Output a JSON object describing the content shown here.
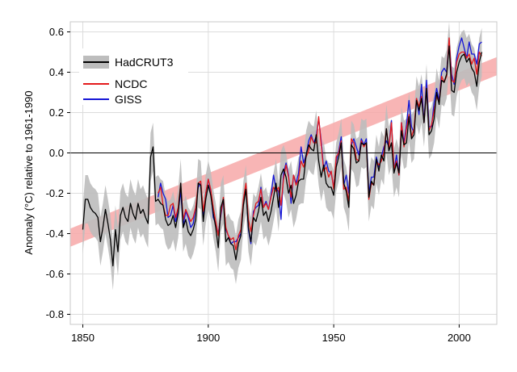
{
  "chart_data": {
    "type": "line",
    "title": "",
    "xlabel": "",
    "ylabel": "Anomaly (°C) relative to 1961-1990",
    "xlim": [
      1845,
      2015
    ],
    "ylim": [
      -0.85,
      0.65
    ],
    "x_ticks": [
      1850,
      1900,
      1950,
      2000
    ],
    "y_ticks": [
      0.6,
      0.4,
      0.2,
      0.0,
      -0.2,
      -0.4,
      -0.6,
      -0.8
    ],
    "y_tick_labels": [
      "0.6",
      "0.4",
      "0.2",
      "0.0",
      "-0.2",
      "-0.4",
      "-0.6",
      "-0.8"
    ],
    "grid": true,
    "legend_position": "top-left",
    "trend_band": {
      "x": [
        1845,
        2015
      ],
      "center": [
        -0.42,
        0.43
      ],
      "half_width": 0.045,
      "color": "#f7a8a8"
    },
    "series": [
      {
        "name": "HadCRUT3",
        "color": "#000000",
        "band_color": "#bdbdbd",
        "uncertainty": 0.12,
        "start": 1850,
        "values": [
          -0.38,
          -0.23,
          -0.23,
          -0.27,
          -0.29,
          -0.3,
          -0.32,
          -0.44,
          -0.37,
          -0.28,
          -0.35,
          -0.43,
          -0.56,
          -0.38,
          -0.49,
          -0.31,
          -0.27,
          -0.32,
          -0.34,
          -0.25,
          -0.3,
          -0.33,
          -0.25,
          -0.3,
          -0.28,
          -0.32,
          -0.35,
          -0.02,
          0.03,
          -0.24,
          -0.23,
          -0.25,
          -0.26,
          -0.33,
          -0.36,
          -0.35,
          -0.31,
          -0.37,
          -0.3,
          -0.15,
          -0.37,
          -0.33,
          -0.39,
          -0.41,
          -0.38,
          -0.33,
          -0.15,
          -0.16,
          -0.34,
          -0.23,
          -0.16,
          -0.21,
          -0.3,
          -0.37,
          -0.47,
          -0.27,
          -0.23,
          -0.44,
          -0.42,
          -0.45,
          -0.46,
          -0.53,
          -0.45,
          -0.41,
          -0.26,
          -0.18,
          -0.37,
          -0.44,
          -0.32,
          -0.34,
          -0.29,
          -0.22,
          -0.31,
          -0.29,
          -0.34,
          -0.29,
          -0.22,
          -0.15,
          -0.27,
          -0.11,
          -0.08,
          -0.12,
          -0.2,
          -0.16,
          -0.25,
          -0.21,
          -0.14,
          -0.13,
          -0.13,
          -0.01,
          0.04,
          0.02,
          0.01,
          0.09,
          -0.04,
          -0.12,
          -0.06,
          -0.15,
          -0.17,
          -0.17,
          -0.21,
          -0.07,
          -0.02,
          0.05,
          -0.15,
          -0.19,
          -0.27,
          0.04,
          0.02,
          -0.05,
          -0.04,
          0.05,
          0.04,
          0.05,
          -0.22,
          -0.14,
          -0.16,
          -0.03,
          -0.09,
          -0.01,
          -0.04,
          0.12,
          0.01,
          0.05,
          -0.1,
          -0.05,
          -0.1,
          0.11,
          0.04,
          0.05,
          0.18,
          0.07,
          0.09,
          0.26,
          0.21,
          0.27,
          0.15,
          0.32,
          0.09,
          0.11,
          0.17,
          0.3,
          0.24,
          0.36,
          0.35,
          0.39,
          0.53,
          0.31,
          0.3,
          0.4,
          0.45,
          0.48,
          0.49,
          0.45,
          0.47,
          0.42,
          0.4,
          0.33,
          0.45,
          0.5
        ]
      },
      {
        "name": "NCDC",
        "color": "#e41a1c",
        "start": 1880,
        "values": [
          -0.2,
          -0.17,
          -0.26,
          -0.31,
          -0.31,
          -0.26,
          -0.25,
          -0.32,
          -0.27,
          -0.15,
          -0.33,
          -0.28,
          -0.31,
          -0.34,
          -0.32,
          -0.27,
          -0.15,
          -0.14,
          -0.29,
          -0.2,
          -0.13,
          -0.18,
          -0.27,
          -0.34,
          -0.41,
          -0.3,
          -0.22,
          -0.37,
          -0.41,
          -0.43,
          -0.42,
          -0.48,
          -0.41,
          -0.38,
          -0.23,
          -0.15,
          -0.33,
          -0.39,
          -0.31,
          -0.25,
          -0.24,
          -0.18,
          -0.27,
          -0.25,
          -0.28,
          -0.22,
          -0.17,
          -0.19,
          -0.17,
          -0.26,
          -0.13,
          -0.06,
          -0.12,
          -0.22,
          -0.11,
          -0.16,
          -0.13,
          -0.04,
          -0.07,
          -0.02,
          0.01,
          0.08,
          0.05,
          0.05,
          0.18,
          0.04,
          -0.09,
          -0.07,
          -0.12,
          -0.09,
          -0.18,
          -0.02,
          0.0,
          0.06,
          -0.18,
          -0.17,
          -0.24,
          0.07,
          0.05,
          -0.03,
          -0.04,
          0.06,
          0.03,
          0.05,
          -0.23,
          -0.15,
          -0.16,
          -0.04,
          -0.06,
          -0.04,
          0.0,
          0.12,
          0.02,
          0.15,
          -0.08,
          -0.04,
          -0.11,
          0.15,
          0.03,
          0.12,
          0.19,
          0.08,
          0.12,
          0.27,
          0.23,
          0.28,
          0.15,
          0.32,
          0.11,
          0.14,
          0.21,
          0.28,
          0.25,
          0.38,
          0.35,
          0.38,
          0.57,
          0.36,
          0.35,
          0.45,
          0.49,
          0.5,
          0.5,
          0.47,
          0.49,
          0.44,
          0.47,
          0.39,
          0.5,
          0.48
        ]
      },
      {
        "name": "GISS",
        "color": "#1515d6",
        "start": 1880,
        "values": [
          -0.22,
          -0.15,
          -0.2,
          -0.23,
          -0.32,
          -0.31,
          -0.26,
          -0.34,
          -0.29,
          -0.19,
          -0.36,
          -0.29,
          -0.32,
          -0.37,
          -0.35,
          -0.27,
          -0.17,
          -0.15,
          -0.31,
          -0.2,
          -0.13,
          -0.19,
          -0.32,
          -0.35,
          -0.4,
          -0.31,
          -0.23,
          -0.38,
          -0.41,
          -0.45,
          -0.44,
          -0.44,
          -0.42,
          -0.4,
          -0.24,
          -0.16,
          -0.38,
          -0.45,
          -0.29,
          -0.27,
          -0.26,
          -0.17,
          -0.27,
          -0.24,
          -0.28,
          -0.21,
          -0.11,
          -0.18,
          -0.19,
          -0.33,
          -0.1,
          -0.05,
          -0.11,
          -0.25,
          -0.11,
          -0.15,
          -0.1,
          0.03,
          -0.05,
          -0.01,
          0.06,
          0.09,
          0.05,
          0.08,
          0.17,
          0.06,
          -0.08,
          -0.04,
          -0.09,
          -0.1,
          -0.17,
          -0.04,
          0.01,
          0.08,
          -0.16,
          -0.11,
          -0.2,
          0.04,
          0.07,
          0.03,
          -0.01,
          0.07,
          0.04,
          0.07,
          -0.2,
          -0.12,
          -0.12,
          -0.02,
          -0.07,
          -0.02,
          0.03,
          0.06,
          0.03,
          0.16,
          -0.09,
          -0.01,
          -0.11,
          0.15,
          0.05,
          0.14,
          0.26,
          0.13,
          0.1,
          0.27,
          0.19,
          0.34,
          0.15,
          0.36,
          0.13,
          0.13,
          0.25,
          0.32,
          0.26,
          0.4,
          0.42,
          0.4,
          0.56,
          0.39,
          0.34,
          0.47,
          0.53,
          0.57,
          0.52,
          0.47,
          0.55,
          0.49,
          0.49,
          0.44,
          0.54,
          0.55
        ]
      }
    ]
  }
}
